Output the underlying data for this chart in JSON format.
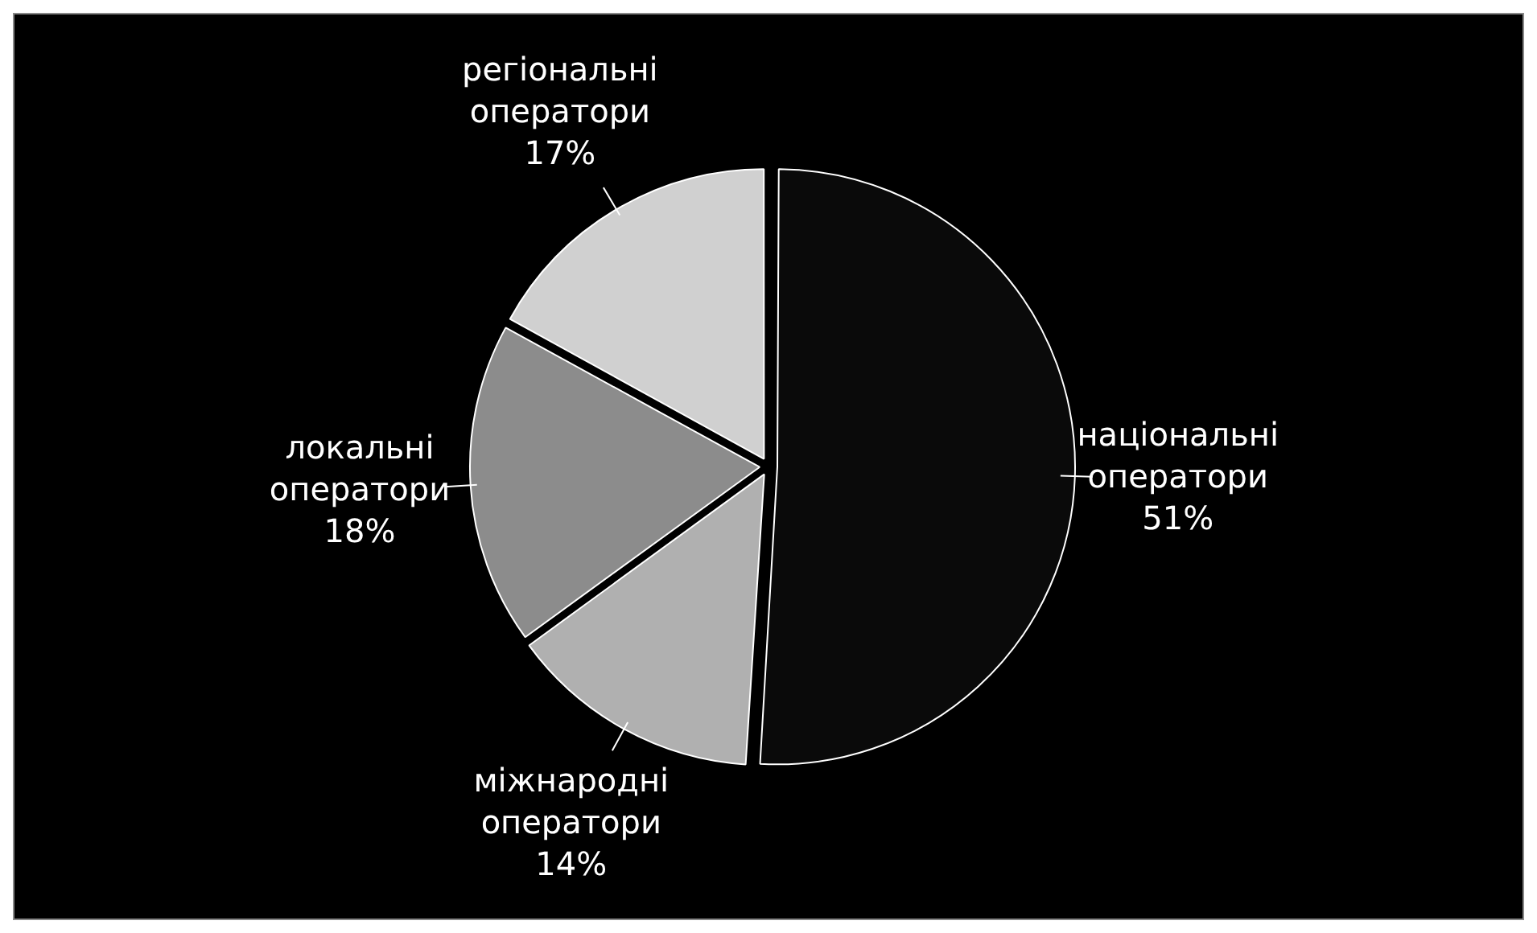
{
  "chart_data": {
    "type": "pie",
    "categories": [
      "національні оператори",
      "міжнародні оператори",
      "локальні оператори",
      "регіональні оператори"
    ],
    "values": [
      51,
      14,
      18,
      17
    ],
    "colors": [
      "#0a0a0a",
      "#b0b0b0",
      "#8c8c8c",
      "#d0d0d0"
    ],
    "value_labels": [
      "51%",
      "14%",
      "18%",
      "17%"
    ],
    "legend": false
  }
}
